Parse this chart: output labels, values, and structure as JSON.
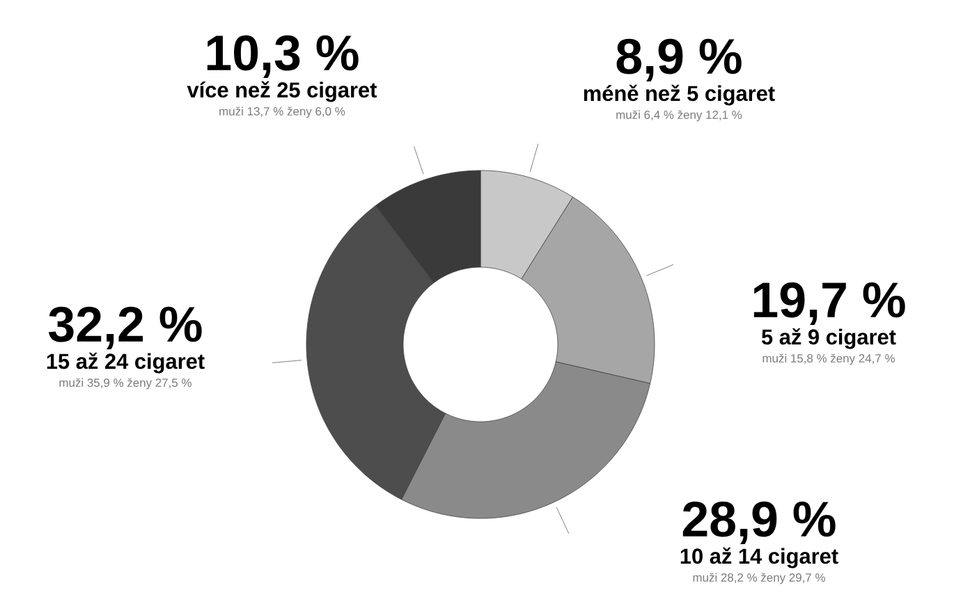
{
  "chart_data": {
    "type": "donut",
    "categories": [
      "méně než 5 cigaret",
      "5 až 9 cigaret",
      "10 až 14 cigaret",
      "15 až 24 cigaret",
      "více než 25 cigaret"
    ],
    "values": [
      8.9,
      19.7,
      28.9,
      32.2,
      10.3
    ],
    "value_labels": [
      "8,9 %",
      "19,7 %",
      "28,9 %",
      "32,2 %",
      "10,3 %"
    ],
    "colors": [
      "#c8c8c8",
      "#a6a6a6",
      "#8a8a8a",
      "#4d4d4d",
      "#3a3a3a"
    ],
    "annotations": [
      "muži 6,4 %    ženy 12,1 %",
      "muži 15,8 %    ženy 24,7 %",
      "muži 28,2 %    ženy 29,7 %",
      "muži 35,9 %    ženy 27,5 %",
      "muži 13,7 %    ženy 6,0 %"
    ]
  }
}
